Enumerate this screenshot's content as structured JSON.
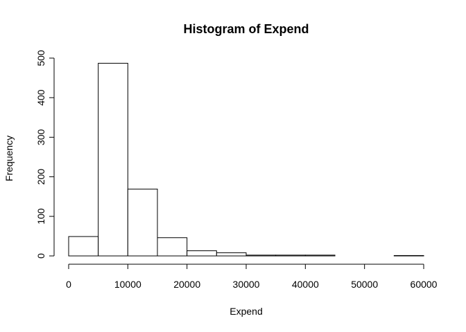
{
  "chart_data": {
    "type": "histogram",
    "title": "Histogram of Expend",
    "xlabel": "Expend",
    "ylabel": "Frequency",
    "bin_edges": [
      0,
      5000,
      10000,
      15000,
      20000,
      25000,
      30000,
      35000,
      40000,
      45000,
      50000,
      55000,
      60000
    ],
    "counts": [
      49,
      487,
      169,
      46,
      13,
      8,
      2,
      2,
      2,
      0,
      0,
      1
    ],
    "xlim": [
      0,
      60000
    ],
    "ylim": [
      0,
      500
    ],
    "x_ticks": [
      0,
      10000,
      20000,
      30000,
      40000,
      50000,
      60000
    ],
    "x_tick_labels": [
      "0",
      "10000",
      "20000",
      "30000",
      "40000",
      "50000",
      "60000"
    ],
    "y_ticks": [
      0,
      100,
      200,
      300,
      400,
      500
    ],
    "y_tick_labels": [
      "0",
      "100",
      "200",
      "300",
      "400",
      "500"
    ],
    "bar_fill": "#ffffff",
    "bar_stroke": "#000000"
  }
}
